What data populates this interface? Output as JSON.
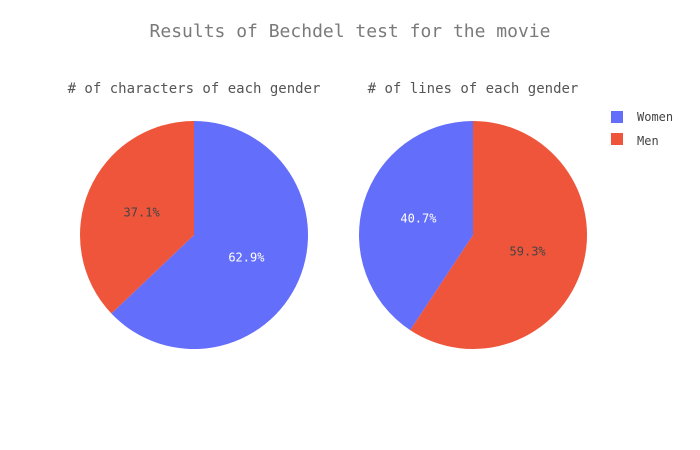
{
  "chart_data": {
    "type": "pie",
    "title": "Results of Bechdel test for the movie",
    "legend": {
      "placement": "top-right",
      "entries": [
        {
          "name": "Women",
          "color": "#636efa"
        },
        {
          "name": "Men",
          "color": "#ef553b"
        }
      ]
    },
    "charts": [
      {
        "title": "# of characters of each gender",
        "slices": [
          {
            "label": "Women",
            "value": 62.9,
            "display": "62.9%",
            "color": "#636efa"
          },
          {
            "label": "Men",
            "value": 37.1,
            "display": "37.1%",
            "color": "#ef553b"
          }
        ]
      },
      {
        "title": "# of lines of each gender",
        "slices": [
          {
            "label": "Men",
            "value": 59.3,
            "display": "59.3%",
            "color": "#ef553b"
          },
          {
            "label": "Women",
            "value": 40.7,
            "display": "40.7%",
            "color": "#636efa"
          }
        ]
      }
    ]
  }
}
